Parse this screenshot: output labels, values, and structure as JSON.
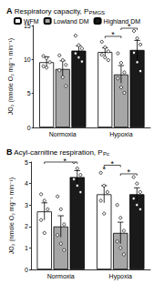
{
  "chart_data": [
    {
      "type": "bar",
      "panel_label": "A",
      "title": "Respiratory capacity, P",
      "title_sub": "PMGS",
      "y_label": "JO₂ (nmole O₂ mg⁻¹ min⁻¹)",
      "categories": [
        "Normoxia",
        "Hypoxia"
      ],
      "series": [
        {
          "name": "WFM",
          "color": "#ffffff",
          "values": [
            9.6,
            11.1
          ],
          "errors": [
            0.8,
            0.6
          ],
          "points": [
            [
              10.5,
              10.2,
              9.6,
              9.0,
              8.8
            ],
            [
              12.6,
              11.8,
              11.2,
              10.7,
              10.3,
              9.9
            ]
          ]
        },
        {
          "name": "Lowland DM",
          "color": "#a6a6a6",
          "values": [
            8.6,
            7.8
          ],
          "errors": [
            1.2,
            1.3
          ],
          "points": [
            [
              10.6,
              9.9,
              9.2,
              8.4,
              7.4,
              6.1
            ],
            [
              10.9,
              9.5,
              8.1,
              7.2,
              5.9,
              5.1
            ]
          ]
        },
        {
          "name": "Highland DM",
          "color": "#1a1a1a",
          "values": [
            11.3,
            11.4
          ],
          "errors": [
            0.7,
            1.4
          ],
          "points": [
            [
              13.5,
              12.1,
              11.6,
              10.9,
              10.3,
              9.7
            ],
            [
              14.2,
              13.1,
              12.2,
              11.0,
              9.6,
              8.3
            ]
          ]
        }
      ],
      "ylim": [
        0,
        15
      ],
      "yticks": [
        0,
        5,
        10,
        15
      ],
      "grid": false,
      "legend": "top",
      "annotations": [
        {
          "text": "*",
          "category": "Hypoxia",
          "from": [
            "WFM"
          ],
          "to": [
            "Lowland DM"
          ],
          "y": 13.4
        },
        {
          "text": "*",
          "category": "Hypoxia",
          "from": [
            "Lowland DM"
          ],
          "to": [
            "Highland DM"
          ],
          "y": 14.6
        }
      ]
    },
    {
      "type": "bar",
      "panel_label": "B",
      "title": "Acyl-carnitine respiration, P",
      "title_sub": "Pc",
      "y_label": "JO₂ (nmole O₂ mg⁻¹ min⁻¹)",
      "categories": [
        "Normoxia",
        "Hypoxia"
      ],
      "series": [
        {
          "name": "WFM",
          "color": "#ffffff",
          "values": [
            2.7,
            3.5
          ],
          "errors": [
            0.4,
            0.4
          ],
          "points": [
            [
              3.5,
              3.2,
              2.8,
              2.3,
              1.7
            ],
            [
              4.5,
              3.9,
              3.6,
              3.2,
              2.6
            ]
          ]
        },
        {
          "name": "Lowland DM",
          "color": "#a6a6a6",
          "values": [
            2.0,
            1.7
          ],
          "errors": [
            0.5,
            0.5
          ],
          "points": [
            [
              3.4,
              2.8,
              2.1,
              1.6,
              1.2,
              0.9
            ],
            [
              3.0,
              2.4,
              1.8,
              1.3,
              1.0,
              0.7
            ]
          ]
        },
        {
          "name": "Highland DM",
          "color": "#1a1a1a",
          "values": [
            4.3,
            3.5
          ],
          "errors": [
            0.3,
            0.3
          ],
          "points": [
            [
              5.0,
              4.7,
              4.4,
              4.2,
              3.9,
              3.6
            ],
            [
              4.3,
              4.0,
              3.6,
              3.3,
              3.0,
              2.8
            ]
          ]
        }
      ],
      "ylim": [
        0,
        5
      ],
      "yticks": [
        0,
        1,
        2,
        3,
        4,
        5
      ],
      "grid": false,
      "annotations": [
        {
          "text": "*",
          "category": "Normoxia",
          "from": [
            "WFM",
            "Lowland DM"
          ],
          "to": [
            "Highland DM"
          ],
          "y": 5.0
        },
        {
          "text": "*",
          "category": "Hypoxia",
          "from": [
            "WFM"
          ],
          "to": [
            "WFM"
          ],
          "y": 4.6
        },
        {
          "text": "*",
          "category": "Hypoxia",
          "from": [
            "WFM"
          ],
          "to": [
            "Lowland DM"
          ],
          "y": 4.85
        },
        {
          "text": "*",
          "category": "Hypoxia",
          "from": [
            "Lowland DM"
          ],
          "to": [
            "Highland DM"
          ],
          "y": 4.45
        }
      ]
    }
  ]
}
